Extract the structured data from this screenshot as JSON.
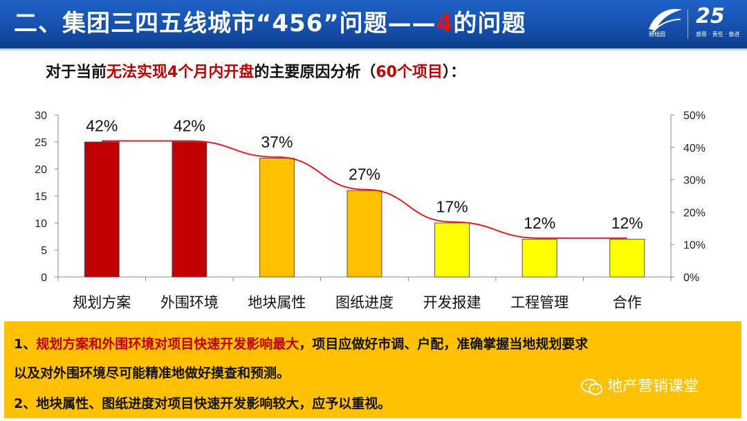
{
  "header": {
    "title_main": "二、集团三四五线城市“456”问题——",
    "title_accent": "4",
    "title_tail": "的问题",
    "logo_text": "碧桂园",
    "anniversary": "25",
    "anniversary_sub": "感恩 · 责任 · 奋进"
  },
  "subtitle": {
    "part1": "对于当前",
    "part2": "无法实现4个月内开盘",
    "part3": "的主要原因分析（",
    "part4": "60个项目",
    "part5": "）："
  },
  "chart_data": {
    "type": "bar",
    "categories": [
      "规划方案",
      "外围环境",
      "地块属性",
      "图纸进度",
      "开发报建",
      "工程管理",
      "合作"
    ],
    "values": [
      25,
      25,
      22,
      16,
      10,
      7,
      7
    ],
    "line_values": [
      42,
      42,
      37,
      27,
      17,
      12,
      12
    ],
    "data_labels": [
      "42%",
      "42%",
      "37%",
      "27%",
      "17%",
      "12%",
      "12%"
    ],
    "ylim": [
      0,
      30
    ],
    "yticks": [
      "0",
      "5",
      "10",
      "15",
      "20",
      "25",
      "30"
    ],
    "y2lim": [
      0,
      50
    ],
    "y2ticks": [
      "0%",
      "10%",
      "20%",
      "30%",
      "40%",
      "50%"
    ],
    "bar_colors": [
      "#c00000",
      "#c00000",
      "#ffc000",
      "#ffc000",
      "#ffff00",
      "#ffff00",
      "#ffff00"
    ],
    "line_color": "#e02020",
    "grid": false
  },
  "notes": {
    "line1_prefix": "1、",
    "line1_red": "规划方案和外围环境对项目快速开发影响最大",
    "line1_rest": "，项目应做好市调、户配，准确掌握当地规划要求",
    "line2": "以及对外围环境尽可能精准地做好摸查和预测。",
    "line3": "2、地块属性、图纸进度对项目快速开发影响较大，应予以重视。"
  },
  "watermark": {
    "text": "地产营销课堂",
    "icon": "wechat-icon"
  }
}
